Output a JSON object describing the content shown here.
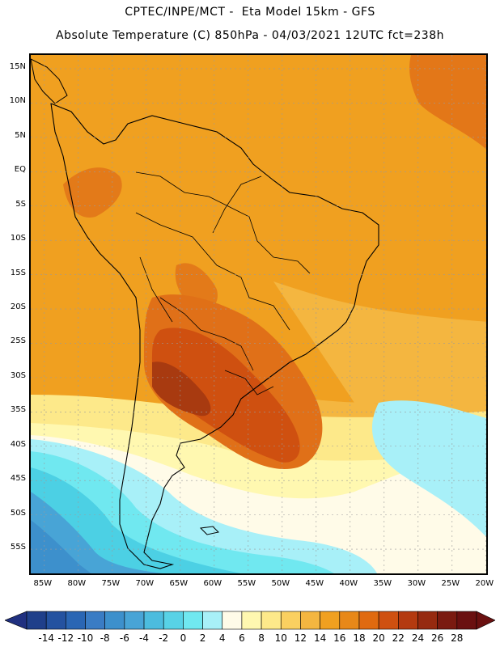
{
  "title_line1": "CPTEC/INPE/MCT -  Eta Model 15km - GFS",
  "title_line2": "Absolute Temperature (C) 850hPa - 04/03/2021 12UTC fct=238h",
  "lat_labels": [
    "15N",
    "10N",
    "5N",
    "EQ",
    "5S",
    "10S",
    "15S",
    "20S",
    "25S",
    "30S",
    "35S",
    "40S",
    "45S",
    "50S",
    "55S"
  ],
  "lat_values": [
    15,
    10,
    5,
    0,
    -5,
    -10,
    -15,
    -20,
    -25,
    -30,
    -35,
    -40,
    -45,
    -50,
    -55
  ],
  "lon_labels": [
    "85W",
    "80W",
    "75W",
    "70W",
    "65W",
    "60W",
    "55W",
    "50W",
    "45W",
    "40W",
    "35W",
    "30W",
    "25W",
    "20W"
  ],
  "lon_values": [
    -85,
    -80,
    -75,
    -70,
    -65,
    -60,
    -55,
    -50,
    -45,
    -40,
    -35,
    -30,
    -25,
    -20
  ],
  "colorbar": {
    "labels": [
      "-14",
      "-12",
      "-10",
      "-8",
      "-6",
      "-4",
      "-2",
      "0",
      "2",
      "4",
      "6",
      "8",
      "10",
      "12",
      "14",
      "16",
      "18",
      "20",
      "22",
      "24",
      "26",
      "28"
    ],
    "colors": [
      "#1f3f8a",
      "#2452a0",
      "#2a66b4",
      "#3a7cc4",
      "#3d90cc",
      "#48a4d6",
      "#4cbcde",
      "#58d2e6",
      "#70e8f0",
      "#a8f0f8",
      "#fffbe8",
      "#fff8b0",
      "#fde98a",
      "#fad060",
      "#f4b640",
      "#f0a020",
      "#e88818",
      "#e06a10",
      "#cf5010",
      "#b43a10",
      "#962a10",
      "#7a1a10",
      "#6a1010"
    ],
    "under_color": "#203080",
    "over_color": "#6a1010"
  },
  "map_colors": {
    "ocean_warm": "#f0a020",
    "land_warm": "#f0a020",
    "hot": "#e07018",
    "hotter": "#cf5010",
    "hottest": "#a83a10",
    "mild": "#f4b640",
    "yellow": "#fde98a",
    "pale_yellow": "#fff8b0",
    "cream": "#fffbe8",
    "light_cyan": "#a8f0f8",
    "cyan": "#70e8f0",
    "cyan2": "#4cd0e4",
    "blue1": "#48a4d6",
    "blue2": "#3d90cc",
    "blue3": "#2a66b4",
    "grid": "#9a9a9a",
    "coast": "#000000"
  }
}
